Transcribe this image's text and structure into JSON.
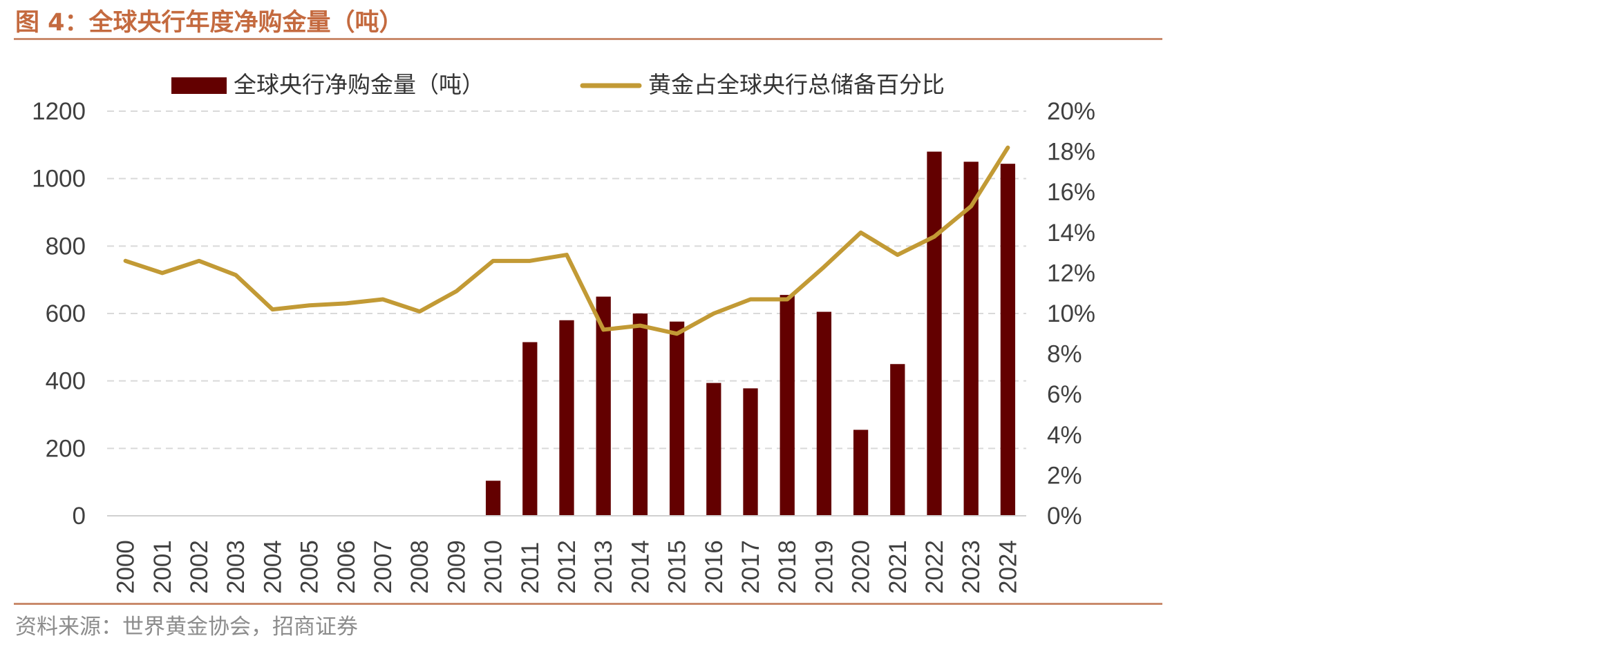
{
  "figure": {
    "title": "图 4：全球央行年度净购金量（吨）",
    "source": "资料来源：世界黄金协会，招商证券"
  },
  "colors": {
    "bar": "#630000",
    "line": "#c29a35",
    "grid": "#d9d9d9",
    "axis_text": "#404040",
    "accent": "#c46a3f"
  },
  "chart_data": {
    "type": "bar",
    "categories": [
      "2000",
      "2001",
      "2002",
      "2003",
      "2004",
      "2005",
      "2006",
      "2007",
      "2008",
      "2009",
      "2010",
      "2011",
      "2012",
      "2013",
      "2014",
      "2015",
      "2016",
      "2017",
      "2018",
      "2019",
      "2020",
      "2021",
      "2022",
      "2023",
      "2024"
    ],
    "series": [
      {
        "name": "全球央行净购金量（吨）",
        "type": "bar",
        "axis": "left",
        "values": [
          null,
          null,
          null,
          null,
          null,
          null,
          null,
          null,
          null,
          null,
          104,
          515,
          580,
          650,
          600,
          576,
          394,
          378,
          655,
          605,
          255,
          450,
          1080,
          1050,
          1044
        ]
      },
      {
        "name": "黄金占全球央行总储备百分比",
        "type": "line",
        "axis": "right",
        "values": [
          12.6,
          12.0,
          12.6,
          11.9,
          10.2,
          10.4,
          10.5,
          10.7,
          10.1,
          11.1,
          12.6,
          12.6,
          12.9,
          9.2,
          9.4,
          9.0,
          10.0,
          10.7,
          10.7,
          12.3,
          14.0,
          12.9,
          13.8,
          15.3,
          18.2
        ]
      }
    ],
    "y_left": {
      "lim": [
        0,
        1200
      ],
      "ticks": [
        "0",
        "200",
        "400",
        "600",
        "800",
        "1000",
        "1200"
      ]
    },
    "y_right": {
      "lim": [
        0,
        20
      ],
      "ticks": [
        "0%",
        "2%",
        "4%",
        "6%",
        "8%",
        "10%",
        "12%",
        "14%",
        "16%",
        "18%",
        "20%"
      ]
    },
    "grid": true,
    "legend_position": "top"
  }
}
